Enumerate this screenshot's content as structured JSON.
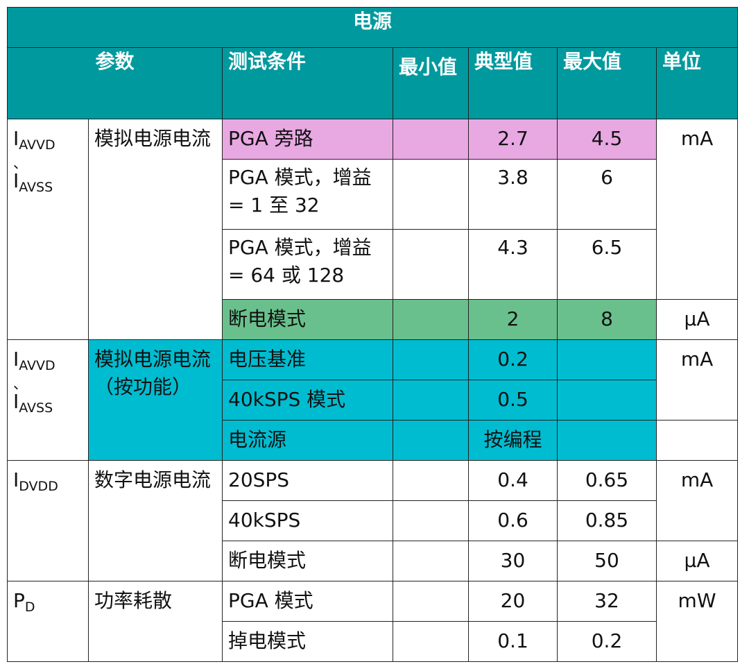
{
  "title": "电源",
  "headers": {
    "param": "参数",
    "condition": "测试条件",
    "min": "最小值",
    "typ": "典型值",
    "max": "最大值",
    "unit": "单位"
  },
  "colors": {
    "header_bg": "#00999e",
    "highlight_pink": "#e8a8e2",
    "highlight_green": "#6ac08c",
    "highlight_teal": "#00bcd0"
  },
  "groups": [
    {
      "symbol_a": "I",
      "sub_a": "AVVD",
      "sep": "、",
      "symbol_b": "I",
      "sub_b": "AVSS",
      "param": "模拟电源电流",
      "rows": [
        {
          "condition": "PGA 旁路",
          "min": "",
          "typ": "2.7",
          "max": "4.5",
          "unit": "mA"
        },
        {
          "condition": "PGA 模式，增益 = 1 至 32",
          "min": "",
          "typ": "3.8",
          "max": "6",
          "unit": ""
        },
        {
          "condition": "PGA 模式，增益 = 64 或 128",
          "min": "",
          "typ": "4.3",
          "max": "6.5",
          "unit": ""
        },
        {
          "condition": "断电模式",
          "min": "",
          "typ": "2",
          "max": "8",
          "unit": "μA"
        }
      ]
    },
    {
      "symbol_a": "I",
      "sub_a": "AVVD",
      "sep": "、",
      "symbol_b": "I",
      "sub_b": "AVSS",
      "param": "模拟电源电流（按功能）",
      "rows": [
        {
          "condition": "电压基准",
          "min": "",
          "typ": "0.2",
          "max": "",
          "unit": "mA"
        },
        {
          "condition": "40kSPS 模式",
          "min": "",
          "typ": "0.5",
          "max": "",
          "unit": ""
        },
        {
          "condition": "电流源",
          "min": "",
          "typ": "按编程",
          "max": "",
          "unit": ""
        }
      ]
    },
    {
      "symbol_a": "I",
      "sub_a": "DVDD",
      "param": "数字电源电流",
      "rows": [
        {
          "condition": "20SPS",
          "min": "",
          "typ": "0.4",
          "max": "0.65",
          "unit": "mA"
        },
        {
          "condition": "40kSPS",
          "min": "",
          "typ": "0.6",
          "max": "0.85",
          "unit": ""
        },
        {
          "condition": "断电模式",
          "min": "",
          "typ": "30",
          "max": "50",
          "unit": "μA"
        }
      ]
    },
    {
      "symbol_a": "P",
      "sub_a": "D",
      "param": "功率耗散",
      "rows": [
        {
          "condition": "PGA 模式",
          "min": "",
          "typ": "20",
          "max": "32",
          "unit": "mW"
        },
        {
          "condition": "掉电模式",
          "min": "",
          "typ": "0.1",
          "max": "0.2",
          "unit": ""
        }
      ]
    }
  ]
}
